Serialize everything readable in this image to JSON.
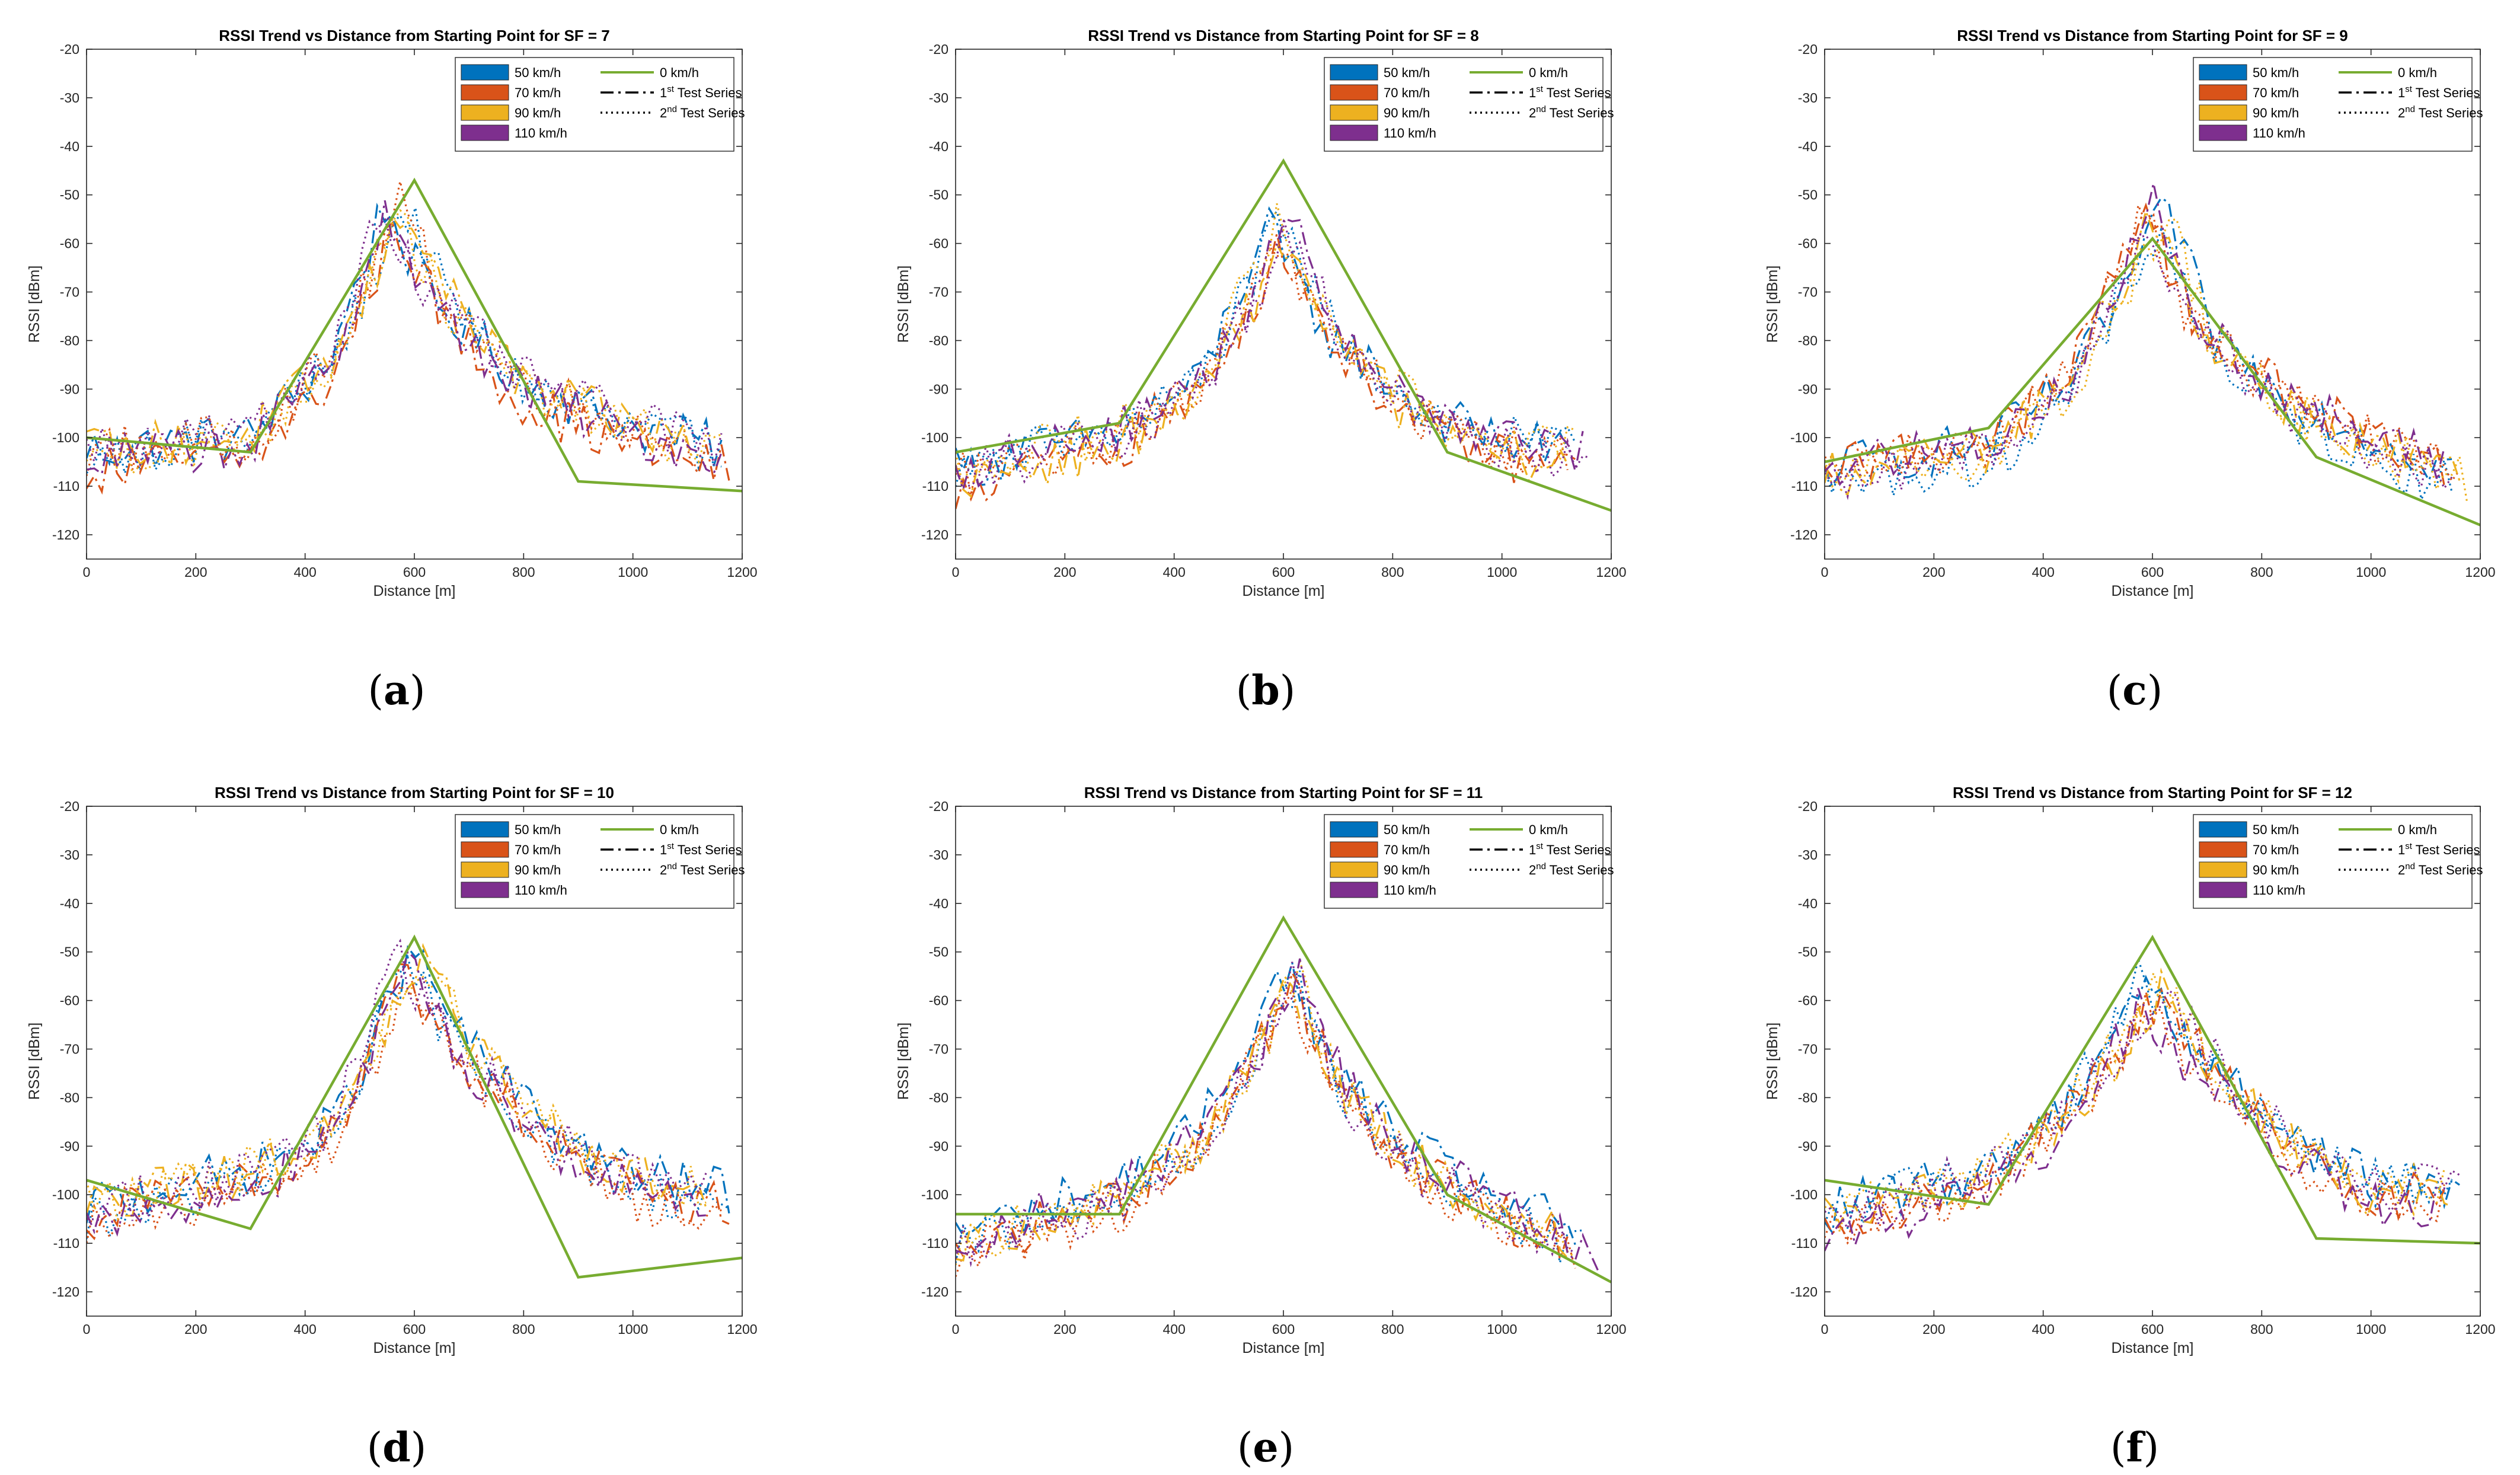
{
  "colors": {
    "kmh50": "#0072BD",
    "kmh70": "#D95319",
    "kmh90": "#EDB120",
    "kmh110": "#7E2F8E",
    "kmh0": "#77AC30",
    "axis": "#262626",
    "frame": "#000000"
  },
  "legend_entries": {
    "kmh50": "50 km/h",
    "kmh70": "70 km/h",
    "kmh90": "90 km/h",
    "kmh110": "110 km/h",
    "kmh0": "0 km/h",
    "test1_pre": "1",
    "test1_sup": "st",
    "test1_post": " Test Series",
    "test2_pre": "2",
    "test2_sup": "nd",
    "test2_post": " Test Series"
  },
  "chart_data": [
    {
      "type": "line",
      "panel_label": "(a)",
      "title": "RSSI Trend vs Distance from Starting Point for SF = 7",
      "xlabel": "Distance [m]",
      "ylabel": "RSSI [dBm]",
      "xlim": [
        0,
        1200
      ],
      "ylim": [
        -125,
        -20
      ],
      "xticks": [
        0,
        200,
        400,
        600,
        800,
        1000,
        1200
      ],
      "yticks": [
        -120,
        -110,
        -100,
        -90,
        -80,
        -70,
        -60,
        -50,
        -40,
        -30,
        -20
      ],
      "legend_position": "top-right",
      "grid": false,
      "reference_0kmh": {
        "x": [
          0,
          300,
          600,
          900,
          1200
        ],
        "y": [
          -100,
          -103,
          -47,
          -109,
          -111
        ]
      },
      "measured_envelope": [
        {
          "x": 0,
          "y": -104
        },
        {
          "x": 300,
          "y": -101
        },
        {
          "x": 450,
          "y": -85
        },
        {
          "x": 560,
          "y": -53
        },
        {
          "x": 650,
          "y": -73
        },
        {
          "x": 800,
          "y": -90
        },
        {
          "x": 1000,
          "y": -99
        },
        {
          "x": 1150,
          "y": -103
        }
      ],
      "reference_peak_x": 600
    },
    {
      "type": "line",
      "panel_label": "(b)",
      "title": "RSSI Trend vs Distance from Starting Point for SF = 8",
      "xlabel": "Distance [m]",
      "ylabel": "RSSI [dBm]",
      "xlim": [
        0,
        1200
      ],
      "ylim": [
        -125,
        -20
      ],
      "xticks": [
        0,
        200,
        400,
        600,
        800,
        1000,
        1200
      ],
      "yticks": [
        -120,
        -110,
        -100,
        -90,
        -80,
        -70,
        -60,
        -50,
        -40,
        -30,
        -20
      ],
      "legend_position": "top-right",
      "grid": false,
      "reference_0kmh": {
        "x": [
          0,
          300,
          600,
          900,
          1200
        ],
        "y": [
          -103,
          -97,
          -43,
          -103,
          -115
        ]
      },
      "measured_envelope": [
        {
          "x": 0,
          "y": -108
        },
        {
          "x": 300,
          "y": -100
        },
        {
          "x": 450,
          "y": -90
        },
        {
          "x": 600,
          "y": -58
        },
        {
          "x": 700,
          "y": -80
        },
        {
          "x": 850,
          "y": -96
        },
        {
          "x": 1000,
          "y": -102
        },
        {
          "x": 1200,
          "y": -106
        }
      ],
      "reference_peak_x": 600
    },
    {
      "type": "line",
      "panel_label": "(c)",
      "title": "RSSI Trend vs Distance from Starting Point for SF = 9",
      "xlabel": "Distance [m]",
      "ylabel": "RSSI [dBm]",
      "xlim": [
        0,
        1200
      ],
      "ylim": [
        -125,
        -20
      ],
      "xticks": [
        0,
        200,
        400,
        600,
        800,
        1000,
        1200
      ],
      "yticks": [
        -120,
        -110,
        -100,
        -90,
        -80,
        -70,
        -60,
        -50,
        -40,
        -30,
        -20
      ],
      "legend_position": "top-right",
      "grid": false,
      "reference_0kmh": {
        "x": [
          0,
          300,
          600,
          900,
          1200
        ],
        "y": [
          -105,
          -98,
          -59,
          -104,
          -118
        ]
      },
      "measured_envelope": [
        {
          "x": 0,
          "y": -108
        },
        {
          "x": 300,
          "y": -103
        },
        {
          "x": 450,
          "y": -90
        },
        {
          "x": 610,
          "y": -54
        },
        {
          "x": 700,
          "y": -80
        },
        {
          "x": 850,
          "y": -94
        },
        {
          "x": 1000,
          "y": -102
        },
        {
          "x": 1200,
          "y": -110
        }
      ],
      "reference_peak_x": 600
    },
    {
      "type": "line",
      "panel_label": "(d)",
      "title": "RSSI Trend vs Distance from Starting Point for SF = 10",
      "xlabel": "Distance [m]",
      "ylabel": "RSSI [dBm]",
      "xlim": [
        0,
        1200
      ],
      "ylim": [
        -125,
        -20
      ],
      "xticks": [
        0,
        200,
        400,
        600,
        800,
        1000,
        1200
      ],
      "yticks": [
        -120,
        -110,
        -100,
        -90,
        -80,
        -70,
        -60,
        -50,
        -40,
        -30,
        -20
      ],
      "legend_position": "top-right",
      "grid": false,
      "reference_0kmh": {
        "x": [
          0,
          300,
          600,
          900,
          1200
        ],
        "y": [
          -97,
          -107,
          -47,
          -117,
          -113
        ]
      },
      "measured_envelope": [
        {
          "x": 0,
          "y": -104
        },
        {
          "x": 300,
          "y": -97
        },
        {
          "x": 450,
          "y": -88
        },
        {
          "x": 590,
          "y": -52
        },
        {
          "x": 700,
          "y": -72
        },
        {
          "x": 850,
          "y": -88
        },
        {
          "x": 1000,
          "y": -98
        },
        {
          "x": 1150,
          "y": -101
        }
      ],
      "reference_peak_x": 600
    },
    {
      "type": "line",
      "panel_label": "(e)",
      "title": "RSSI Trend vs Distance from Starting Point for SF = 11",
      "xlabel": "Distance [m]",
      "ylabel": "RSSI [dBm]",
      "xlim": [
        0,
        1200
      ],
      "ylim": [
        -125,
        -20
      ],
      "xticks": [
        0,
        200,
        400,
        600,
        800,
        1000,
        1200
      ],
      "yticks": [
        -120,
        -110,
        -100,
        -90,
        -80,
        -70,
        -60,
        -50,
        -40,
        -30,
        -20
      ],
      "legend_position": "top-right",
      "grid": false,
      "reference_0kmh": {
        "x": [
          0,
          300,
          600,
          900,
          1200
        ],
        "y": [
          -104,
          -104,
          -43,
          -100,
          -118
        ]
      },
      "measured_envelope": [
        {
          "x": 0,
          "y": -110
        },
        {
          "x": 300,
          "y": -100
        },
        {
          "x": 450,
          "y": -88
        },
        {
          "x": 610,
          "y": -55
        },
        {
          "x": 700,
          "y": -78
        },
        {
          "x": 850,
          "y": -94
        },
        {
          "x": 1000,
          "y": -103
        },
        {
          "x": 1200,
          "y": -113
        }
      ],
      "reference_peak_x": 600
    },
    {
      "type": "line",
      "panel_label": "(f)",
      "title": "RSSI Trend vs Distance from Starting Point for SF = 12",
      "xlabel": "Distance [m]",
      "ylabel": "RSSI [dBm]",
      "xlim": [
        0,
        1200
      ],
      "ylim": [
        -125,
        -20
      ],
      "xticks": [
        0,
        200,
        400,
        600,
        800,
        1000,
        1200
      ],
      "yticks": [
        -120,
        -110,
        -100,
        -90,
        -80,
        -70,
        -60,
        -50,
        -40,
        -30,
        -20
      ],
      "legend_position": "top-right",
      "grid": false,
      "reference_0kmh": {
        "x": [
          0,
          300,
          600,
          900,
          1200
        ],
        "y": [
          -97,
          -102,
          -47,
          -109,
          -110
        ]
      },
      "measured_envelope": [
        {
          "x": 0,
          "y": -106
        },
        {
          "x": 300,
          "y": -97
        },
        {
          "x": 450,
          "y": -83
        },
        {
          "x": 600,
          "y": -58
        },
        {
          "x": 700,
          "y": -74
        },
        {
          "x": 850,
          "y": -90
        },
        {
          "x": 1000,
          "y": -100
        },
        {
          "x": 1150,
          "y": -100
        }
      ],
      "reference_peak_x": 600
    }
  ]
}
